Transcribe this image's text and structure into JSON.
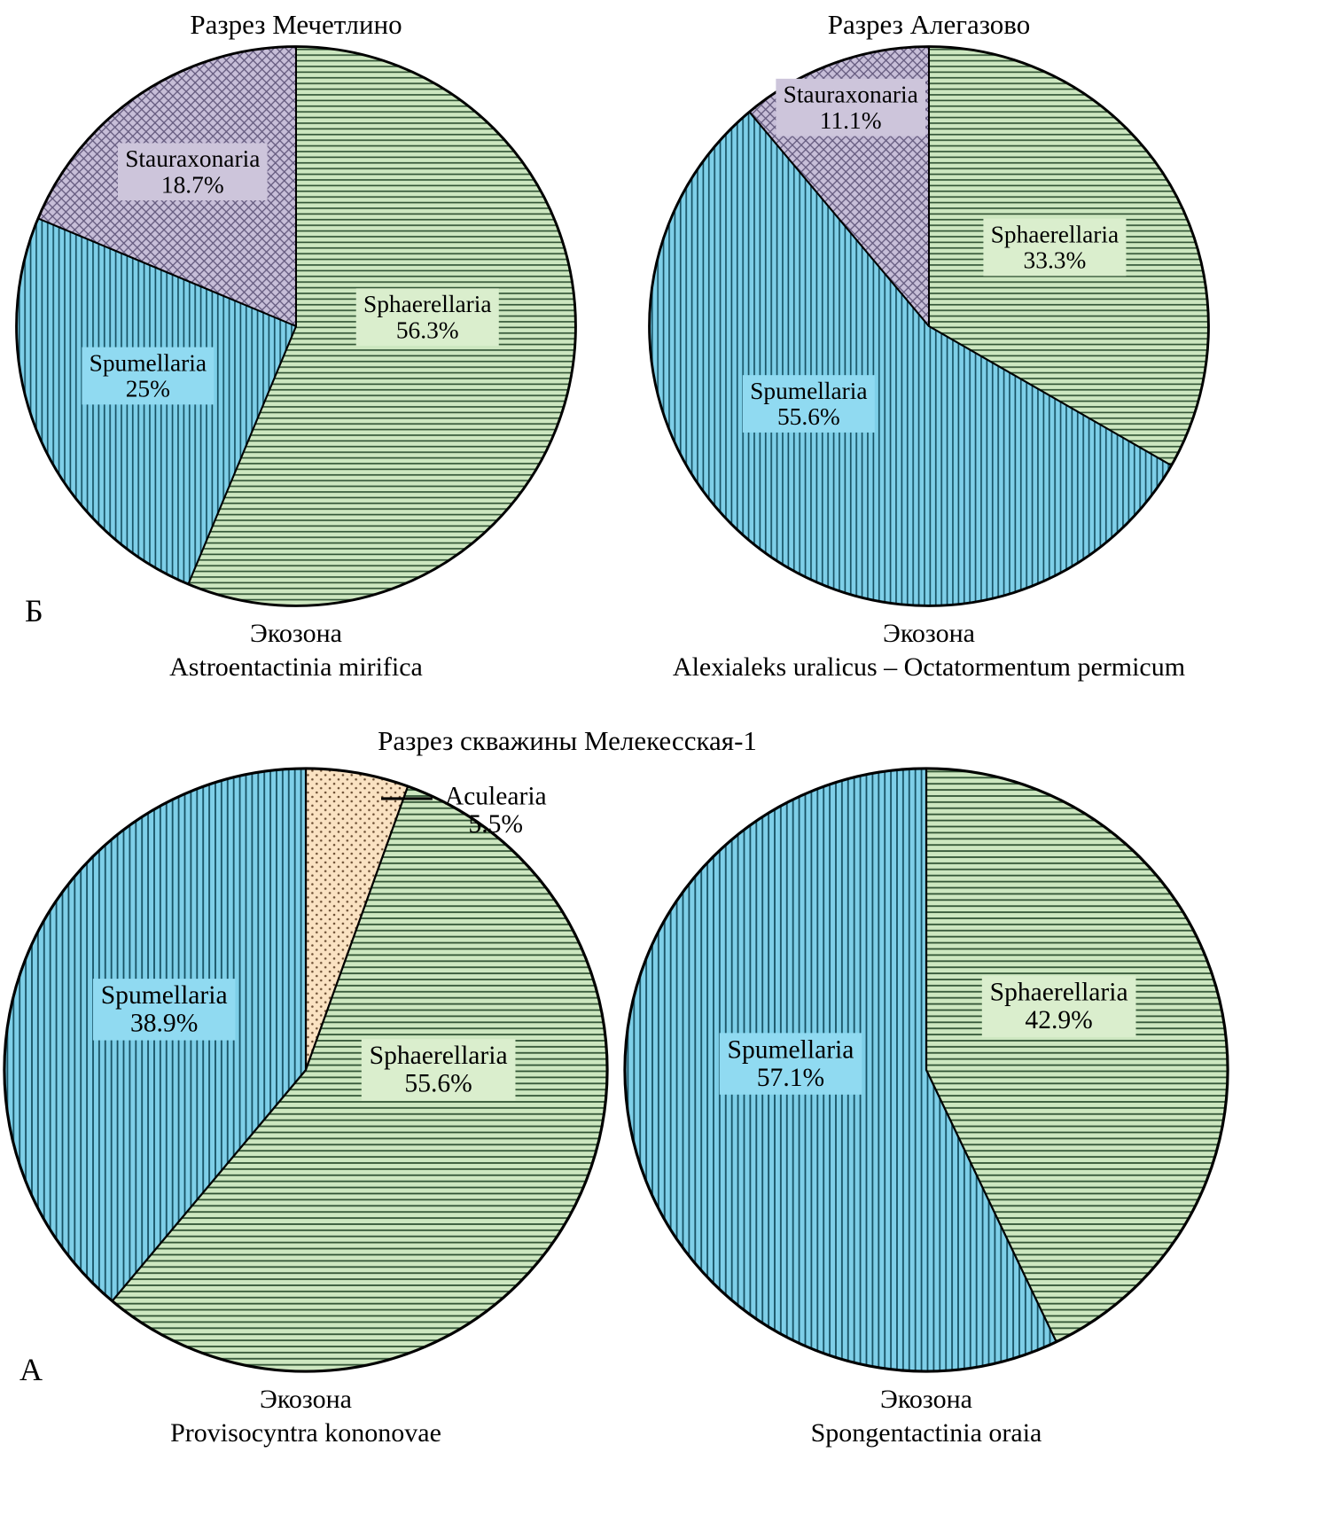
{
  "page": {
    "panel_letters": {
      "top": "Б",
      "bottom": "А"
    },
    "bottom_row_title": "Разрез скважины Мелекесская-1"
  },
  "chart_data": [
    {
      "type": "pie",
      "title": "Разрез Мечетлино",
      "caption": [
        "Экозона",
        "Astroentactinia mirifica"
      ],
      "units": "percent",
      "start_angle_deg": 0,
      "direction": "clockwise",
      "slices": [
        {
          "name": "Sphaerellaria",
          "value": 56.3,
          "pct_label": "56.3%",
          "pattern": "hlines",
          "base_color": "#cde7c0",
          "hatch_color": "#2f5233",
          "label_box_color": "#daeecd",
          "boxed": true,
          "label_pos": [
            0.47,
            -0.03
          ]
        },
        {
          "name": "Spumellaria",
          "value": 25,
          "pct_label": "25%",
          "pattern": "vlines",
          "base_color": "#7ecfe8",
          "hatch_color": "#154f61",
          "label_box_color": "#90daf1",
          "boxed": true,
          "label_pos": [
            -0.53,
            0.18
          ]
        },
        {
          "name": "Stauraxonaria",
          "value": 18.7,
          "pct_label": "18.7%",
          "pattern": "crosshatch",
          "base_color": "#c7bed8",
          "hatch_color": "#645a7e",
          "label_box_color": "#cdc5db",
          "boxed": true,
          "label_pos": [
            -0.37,
            -0.55
          ]
        }
      ]
    },
    {
      "type": "pie",
      "title": "Разрез Алегазово",
      "caption": [
        "Экозона",
        "Alexialeks uralicus – Octatormentum permicum"
      ],
      "units": "percent",
      "start_angle_deg": 0,
      "direction": "clockwise",
      "slices": [
        {
          "name": "Sphaerellaria",
          "value": 33.3,
          "pct_label": "33.3%",
          "pattern": "hlines",
          "base_color": "#cde7c0",
          "hatch_color": "#2f5233",
          "label_box_color": "#daeecd",
          "boxed": true,
          "label_pos": [
            0.45,
            -0.28
          ]
        },
        {
          "name": "Spumellaria",
          "value": 55.6,
          "pct_label": "55.6%",
          "pattern": "vlines",
          "base_color": "#7ecfe8",
          "hatch_color": "#154f61",
          "label_box_color": "#90daf1",
          "boxed": true,
          "label_pos": [
            -0.43,
            0.28
          ]
        },
        {
          "name": "Stauraxonaria",
          "value": 11.1,
          "pct_label": "11.1%",
          "pattern": "crosshatch",
          "base_color": "#c7bed8",
          "hatch_color": "#645a7e",
          "label_box_color": "#cdc5db",
          "boxed": true,
          "label_pos": [
            -0.28,
            -0.78
          ]
        }
      ]
    },
    {
      "type": "pie",
      "title": null,
      "caption": [
        "Экозона",
        "Provisocyntra kononovae"
      ],
      "units": "percent",
      "start_angle_deg": 0,
      "direction": "clockwise",
      "slices": [
        {
          "name": "Aculearia",
          "value": 5.5,
          "pct_label": "5.5%",
          "pattern": "dots",
          "base_color": "#fae2c2",
          "hatch_color": "#6b4e33",
          "label_box_color": null,
          "boxed": false,
          "label_pos": [
            0.63,
            -0.86
          ],
          "leader": [
            [
              0.25,
              -0.9
            ],
            [
              0.42,
              -0.9
            ]
          ]
        },
        {
          "name": "Sphaerellaria",
          "value": 55.6,
          "pct_label": "55.6%",
          "pattern": "hlines",
          "base_color": "#cde7c0",
          "hatch_color": "#2f5233",
          "label_box_color": "#daeecd",
          "boxed": true,
          "label_pos": [
            0.44,
            0.0
          ]
        },
        {
          "name": "Spumellaria",
          "value": 38.9,
          "pct_label": "38.9%",
          "pattern": "vlines",
          "base_color": "#7ecfe8",
          "hatch_color": "#154f61",
          "label_box_color": "#90daf1",
          "boxed": true,
          "label_pos": [
            -0.47,
            -0.2
          ]
        }
      ]
    },
    {
      "type": "pie",
      "title": null,
      "caption": [
        "Экозона",
        "Spongentactinia oraia"
      ],
      "units": "percent",
      "start_angle_deg": 0,
      "direction": "clockwise",
      "slices": [
        {
          "name": "Sphaerellaria",
          "value": 42.9,
          "pct_label": "42.9%",
          "pattern": "hlines",
          "base_color": "#cde7c0",
          "hatch_color": "#2f5233",
          "label_box_color": "#daeecd",
          "boxed": true,
          "label_pos": [
            0.44,
            -0.21
          ]
        },
        {
          "name": "Spumellaria",
          "value": 57.1,
          "pct_label": "57.1%",
          "pattern": "vlines",
          "base_color": "#7ecfe8",
          "hatch_color": "#154f61",
          "label_box_color": "#90daf1",
          "boxed": true,
          "label_pos": [
            -0.45,
            -0.02
          ]
        }
      ]
    }
  ]
}
